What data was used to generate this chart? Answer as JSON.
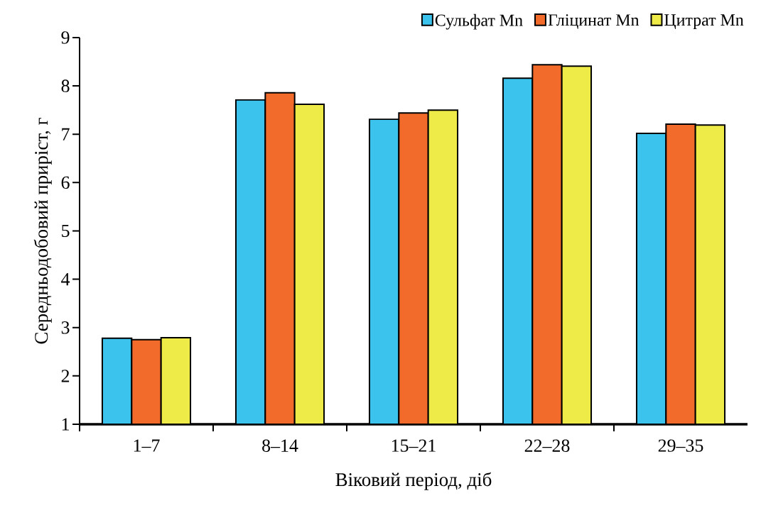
{
  "chart_data": {
    "type": "bar",
    "xlabel": "Віковий період, діб",
    "ylabel": "Середньодобовий приріст, г",
    "categories": [
      "1–7",
      "8–14",
      "15–21",
      "22–28",
      "29–35"
    ],
    "series": [
      {
        "name": "Сульфат Mn",
        "color": "#3bc3ee",
        "values": [
          2.78,
          7.71,
          7.31,
          8.16,
          7.02
        ]
      },
      {
        "name": "Гліцинат Mn",
        "color": "#f26b2b",
        "values": [
          2.75,
          7.86,
          7.44,
          8.44,
          7.21
        ]
      },
      {
        "name": "Цитрат Mn",
        "color": "#eeea48",
        "values": [
          2.79,
          7.62,
          7.5,
          8.41,
          7.19
        ]
      }
    ],
    "ylim": [
      1,
      9
    ],
    "yticks": [
      1,
      2,
      3,
      4,
      5,
      6,
      7,
      8,
      9
    ],
    "grid": false,
    "legend": "top right"
  }
}
